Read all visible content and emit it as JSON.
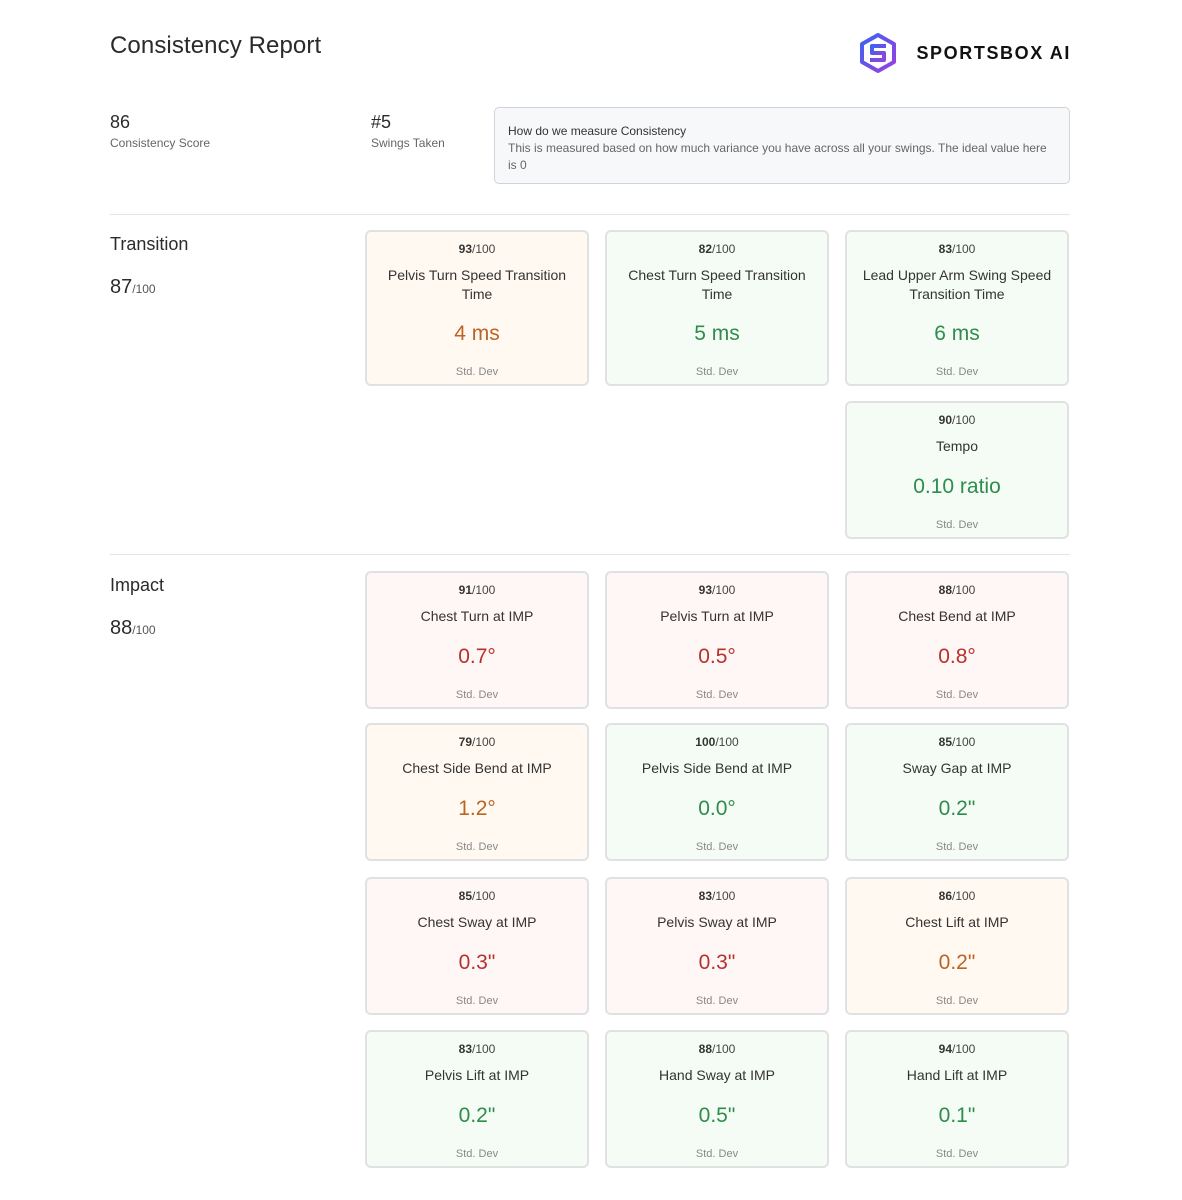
{
  "header": {
    "title": "Consistency Report",
    "brand": "SPORTSBOX AI"
  },
  "summary": {
    "consistency_score": "86",
    "consistency_label": "Consistency Score",
    "swings_taken": "#5",
    "swings_label": "Swings Taken"
  },
  "info": {
    "title": "How do we measure Consistency",
    "text": "This is measured based on how much variance you have across all your swings. The ideal value here is 0"
  },
  "colors": {
    "good": "#2e8c4c",
    "warning": "#bd6324",
    "bad": "#b8312b",
    "brand_purple": "#7b3fe4",
    "brand_blue": "#3a63f0"
  },
  "transition": {
    "name": "Transition",
    "score": "87",
    "score_max": "/100",
    "cards": [
      {
        "score": "93",
        "max": "/100",
        "name": "Pelvis Turn Speed Transition Time",
        "value": "4 ms",
        "sd": "Std. Dev",
        "status": "orange"
      },
      {
        "score": "82",
        "max": "/100",
        "name": "Chest Turn Speed Transition Time",
        "value": "5 ms",
        "sd": "Std. Dev",
        "status": "green"
      },
      {
        "score": "83",
        "max": "/100",
        "name": "Lead Upper Arm Swing Speed Transition Time",
        "value": "6 ms",
        "sd": "Std. Dev",
        "status": "green"
      },
      {
        "score": "90",
        "max": "/100",
        "name": "Tempo",
        "value": "0.10 ratio",
        "sd": "Std. Dev",
        "status": "green"
      }
    ]
  },
  "impact": {
    "name": "Impact",
    "score": "88",
    "score_max": "/100",
    "cards": [
      {
        "score": "91",
        "max": "/100",
        "name": "Chest Turn at IMP",
        "value": "0.7°",
        "sd": "Std. Dev",
        "status": "red"
      },
      {
        "score": "93",
        "max": "/100",
        "name": "Pelvis Turn at IMP",
        "value": "0.5°",
        "sd": "Std. Dev",
        "status": "red"
      },
      {
        "score": "88",
        "max": "/100",
        "name": "Chest Bend at IMP",
        "value": "0.8°",
        "sd": "Std. Dev",
        "status": "red"
      },
      {
        "score": "79",
        "max": "/100",
        "name": "Chest Side Bend at IMP",
        "value": "1.2°",
        "sd": "Std. Dev",
        "status": "orange"
      },
      {
        "score": "100",
        "max": "/100",
        "name": "Pelvis Side Bend at IMP",
        "value": "0.0°",
        "sd": "Std. Dev",
        "status": "green"
      },
      {
        "score": "85",
        "max": "/100",
        "name": "Sway Gap at IMP",
        "value": "0.2\"",
        "sd": "Std. Dev",
        "status": "green"
      },
      {
        "score": "85",
        "max": "/100",
        "name": "Chest Sway at IMP",
        "value": "0.3\"",
        "sd": "Std. Dev",
        "status": "red"
      },
      {
        "score": "83",
        "max": "/100",
        "name": "Pelvis Sway at IMP",
        "value": "0.3\"",
        "sd": "Std. Dev",
        "status": "red"
      },
      {
        "score": "86",
        "max": "/100",
        "name": "Chest Lift at IMP",
        "value": "0.2\"",
        "sd": "Std. Dev",
        "status": "orange"
      },
      {
        "score": "83",
        "max": "/100",
        "name": "Pelvis Lift at IMP",
        "value": "0.2\"",
        "sd": "Std. Dev",
        "status": "green"
      },
      {
        "score": "88",
        "max": "/100",
        "name": "Hand Sway at IMP",
        "value": "0.5\"",
        "sd": "Std. Dev",
        "status": "green"
      },
      {
        "score": "94",
        "max": "/100",
        "name": "Hand Lift at IMP",
        "value": "0.1\"",
        "sd": "Std. Dev",
        "status": "green"
      }
    ]
  }
}
